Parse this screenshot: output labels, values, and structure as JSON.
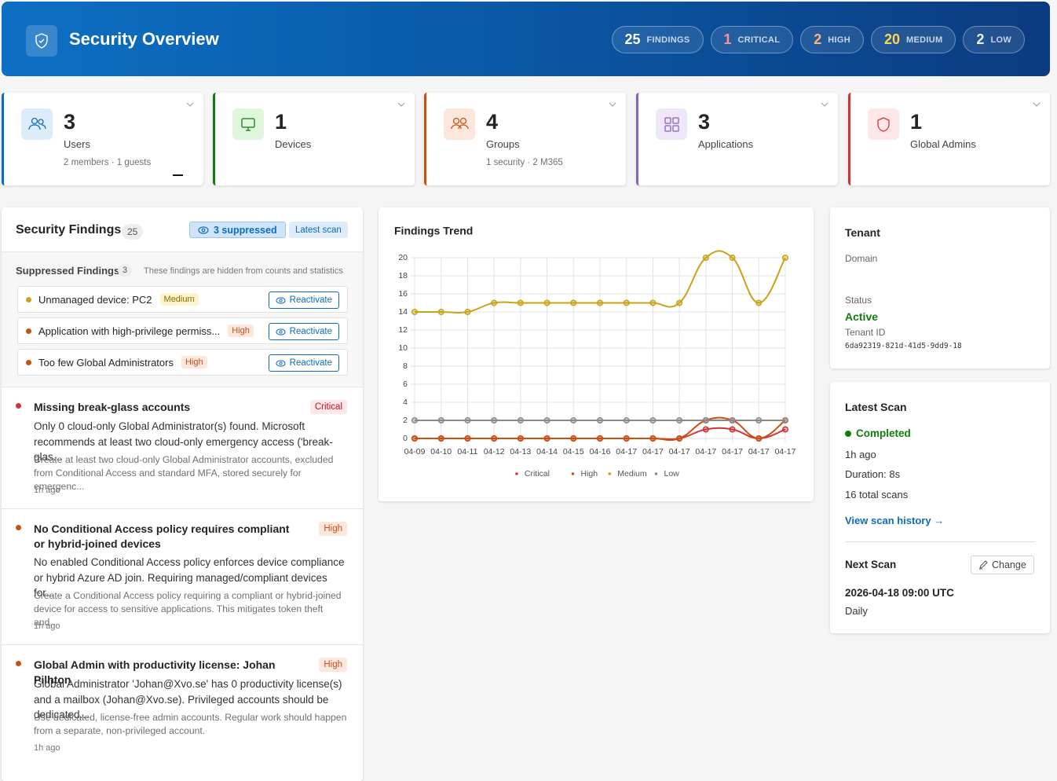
{
  "header": {
    "title": "Security Overview",
    "badges": [
      {
        "count": 25,
        "label": "FINDINGS"
      },
      {
        "count": 1,
        "label": "CRITICAL"
      },
      {
        "count": 2,
        "label": "HIGH"
      },
      {
        "count": 20,
        "label": "MEDIUM"
      },
      {
        "count": 2,
        "label": "LOW"
      }
    ]
  },
  "stats": [
    {
      "value": 3,
      "label": "Users",
      "sub": "2 members · 1 guests"
    },
    {
      "value": 1,
      "label": "Devices"
    },
    {
      "value": 4,
      "label": "Groups",
      "sub": "1 security · 2 M365"
    },
    {
      "value": 3,
      "label": "Applications"
    },
    {
      "value": 1,
      "label": "Global Admins"
    }
  ],
  "findings_panel": {
    "title": "Security Findings",
    "count": 25,
    "suppressed_button": "3 suppressed",
    "latest_scan_tag": "Latest scan",
    "suppressed": {
      "title": "Suppressed Findings",
      "count": 3,
      "note": "These findings are hidden from counts and statistics",
      "action": "Reactivate",
      "items": [
        {
          "title": "Unmanaged device: PC2",
          "severity": "Medium"
        },
        {
          "title": "Application with high-privilege permiss...",
          "severity": "High"
        },
        {
          "title": "Too few Global Administrators",
          "severity": "High"
        }
      ]
    },
    "findings": [
      {
        "title": "Missing break-glass accounts",
        "severity": "Critical",
        "description": "Only 0 cloud-only Global Administrator(s) found. Microsoft recommends at least two cloud-only emergency access ('break-glas...",
        "remediation": "Create at least two cloud-only Global Administrator accounts, excluded from Conditional Access and standard MFA, stored securely for emergenc...",
        "time": "1h ago"
      },
      {
        "title": "No Conditional Access policy requires compliant or hybrid-joined devices",
        "severity": "High",
        "description": "No enabled Conditional Access policy enforces device compliance or hybrid Azure AD join. Requiring managed/compliant devices for...",
        "remediation": "Create a Conditional Access policy requiring a compliant or hybrid-joined device for access to sensitive applications. This mitigates token theft and...",
        "time": "1h ago"
      },
      {
        "title": "Global Admin with productivity license: Johan Pilhton",
        "severity": "High",
        "description": "Global Administrator 'Johan@Xvo.se' has 0 productivity license(s) and a mailbox (Johan@Xvo.se). Privileged accounts should be dedicated...",
        "remediation": "Use dedicated, license-free admin accounts. Regular work should happen from a separate, non-privileged account.",
        "time": "1h ago"
      }
    ]
  },
  "chart_data": {
    "type": "line",
    "title": "Findings Trend",
    "categories": [
      "04-09",
      "04-10",
      "04-11",
      "04-12",
      "04-13",
      "04-14",
      "04-15",
      "04-16",
      "04-17",
      "04-17",
      "04-17",
      "04-17",
      "04-17",
      "04-17",
      "04-17"
    ],
    "series": [
      {
        "name": "Critical",
        "color": "#d13438",
        "values": [
          0,
          0,
          0,
          0,
          0,
          0,
          0,
          0,
          0,
          0,
          0,
          1,
          1,
          0,
          1
        ]
      },
      {
        "name": "High",
        "color": "#ca5010",
        "values": [
          0,
          0,
          0,
          0,
          0,
          0,
          0,
          0,
          0,
          0,
          0,
          2,
          2,
          0,
          2
        ]
      },
      {
        "name": "Medium",
        "color": "#c9a317",
        "values": [
          14,
          14,
          14,
          15,
          15,
          15,
          15,
          15,
          15,
          15,
          15,
          20,
          20,
          15,
          20
        ]
      },
      {
        "name": "Low",
        "color": "#8a8a8a",
        "values": [
          2,
          2,
          2,
          2,
          2,
          2,
          2,
          2,
          2,
          2,
          2,
          2,
          2,
          2,
          2
        ]
      }
    ],
    "ylim": [
      0,
      20
    ],
    "yticks": [
      0,
      2,
      4,
      6,
      8,
      10,
      12,
      14,
      16,
      18,
      20
    ],
    "grid": true,
    "legend": "bottom"
  },
  "tenant": {
    "title": "Tenant",
    "domain_label": "Domain",
    "status_label": "Status",
    "status": "Active",
    "tenant_id_label": "Tenant ID",
    "tenant_id": "6da92319-821d-41d5-9dd9-18"
  },
  "scan": {
    "title": "Latest Scan",
    "status": "Completed",
    "ago": "1h ago",
    "duration": "Duration: 8s",
    "total": "16 total scans",
    "history_link": "View scan history →",
    "next_title": "Next Scan",
    "change_button": "Change",
    "next_time": "2026-04-18 09:00 UTC",
    "frequency": "Daily"
  }
}
